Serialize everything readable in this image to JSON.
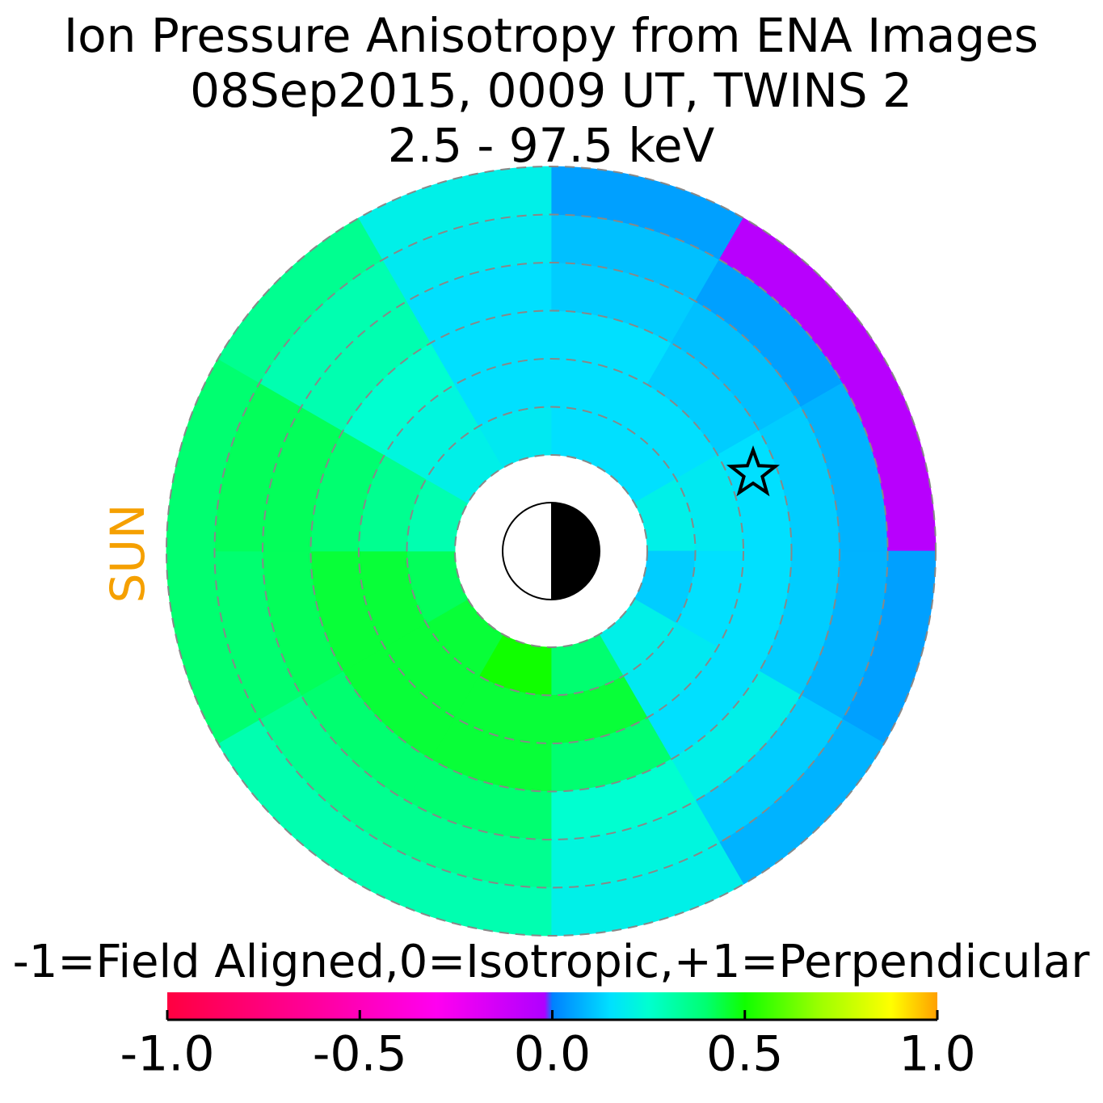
{
  "chart_data": {
    "type": "polar_heatmap",
    "title": "Ion Pressure Anisotropy from  ENA Images",
    "subtitle": "08Sep2015, 0009 UT,  TWINS 2",
    "energy": "2.5 - 97.5 keV",
    "side_label": "SUN",
    "colorbar_label": "-1=Field Aligned,0=Isotropic,+1=Perpendicular",
    "r_bins": [
      2,
      3,
      4,
      5,
      6,
      7,
      8
    ],
    "angle_bins": [
      0,
      30,
      60,
      90,
      120,
      150,
      180,
      210,
      240,
      270,
      300,
      330,
      360
    ],
    "values": [
      [
        0.15,
        0.15,
        0.15,
        0.12,
        0.1,
        0.05
      ],
      [
        0.15,
        0.15,
        0.12,
        0.1,
        0.05,
        -0.05
      ],
      [
        0.2,
        0.18,
        0.15,
        0.12,
        0.08,
        -0.05
      ],
      [
        0.12,
        0.15,
        0.15,
        0.12,
        0.08,
        0.05
      ],
      [
        0.2,
        0.18,
        0.15,
        0.2,
        0.12,
        0.08
      ],
      [
        0.4,
        0.45,
        0.4,
        0.25,
        0.22,
        0.2
      ],
      [
        0.5,
        0.45,
        0.45,
        0.4,
        0.35,
        0.3
      ],
      [
        0.45,
        0.45,
        0.45,
        0.4,
        0.35,
        0.3
      ],
      [
        0.42,
        0.45,
        0.45,
        0.42,
        0.4,
        0.4
      ],
      [
        0.3,
        0.35,
        0.4,
        0.42,
        0.42,
        0.4
      ],
      [
        0.2,
        0.22,
        0.25,
        0.3,
        0.3,
        0.35
      ],
      [
        0.18,
        0.15,
        0.15,
        0.15,
        0.18,
        0.2
      ]
    ],
    "marker": {
      "r": 4.5,
      "angle": 69
    },
    "clim": [
      -1,
      1
    ],
    "colorscale": [
      [
        -1,
        "#ff0040"
      ],
      [
        -0.6,
        "#ff00a0"
      ],
      [
        -0.3,
        "#ff00f0"
      ],
      [
        -0.02,
        "#b000ff"
      ],
      [
        0,
        "#0080ff"
      ],
      [
        0.15,
        "#00e0ff"
      ],
      [
        0.25,
        "#00ffd0"
      ],
      [
        0.4,
        "#00ff70"
      ],
      [
        0.5,
        "#10ff00"
      ],
      [
        0.7,
        "#a0ff00"
      ],
      [
        0.88,
        "#ffff00"
      ],
      [
        1,
        "#ffa000"
      ]
    ],
    "cticks": [
      {
        "value": -1,
        "label": "-1.0"
      },
      {
        "value": -0.5,
        "label": "-0.5"
      },
      {
        "value": 0,
        "label": "0.0"
      },
      {
        "value": 0.5,
        "label": "0.5"
      },
      {
        "value": 1,
        "label": "1.0"
      }
    ],
    "grid": true
  }
}
